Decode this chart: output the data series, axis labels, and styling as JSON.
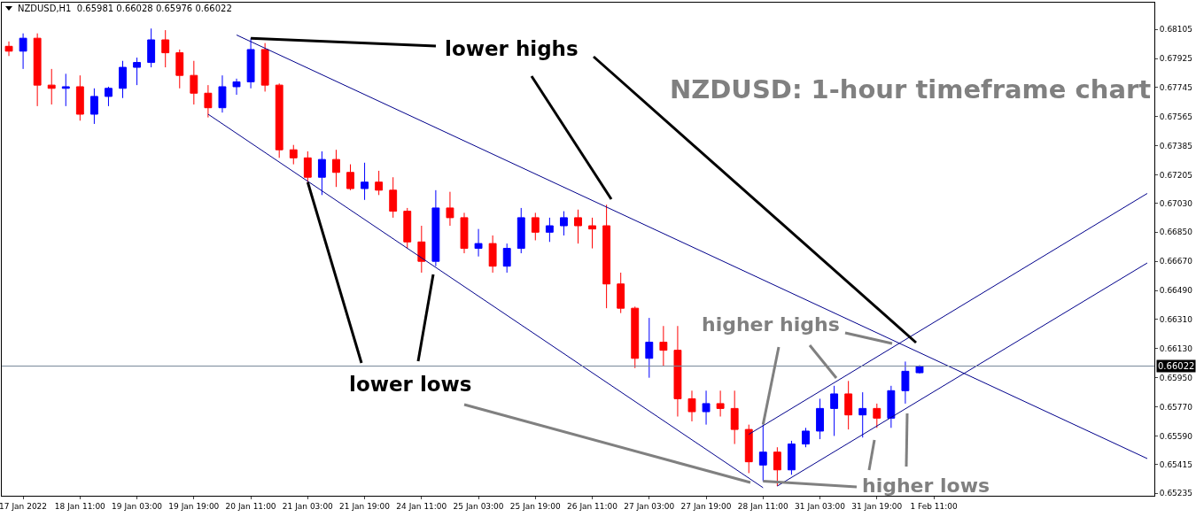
{
  "chart_data": {
    "type": "candlestick",
    "title": "NZDUSD,H1  0.65981 0.66028 0.65976 0.66022",
    "categories": [
      null,
      "17 Jan 2022",
      null,
      null,
      null,
      "18 Jan 11:00",
      null,
      null,
      null,
      "19 Jan 03:00",
      null,
      null,
      null,
      "19 Jan 19:00",
      null,
      null,
      null,
      "20 Jan 11:00",
      null,
      null,
      null,
      "21 Jan 03:00",
      null,
      null,
      null,
      "21 Jan 19:00",
      null,
      null,
      null,
      "24 Jan 11:00",
      null,
      null,
      null,
      "25 Jan 03:00",
      null,
      null,
      null,
      "25 Jan 19:00",
      null,
      null,
      null,
      "26 Jan 11:00",
      null,
      null,
      null,
      "27 Jan 03:00",
      null,
      null,
      null,
      "27 Jan 19:00",
      null,
      null,
      null,
      "28 Jan 11:00",
      null,
      null,
      null,
      "31 Jan 03:00",
      null,
      null,
      null,
      "31 Jan 19:00",
      null,
      null,
      null,
      "1 Feb 11:00",
      null,
      null,
      null,
      null,
      null,
      null,
      null,
      null,
      null,
      null,
      null,
      null,
      null,
      null,
      null
    ],
    "ohlc": [
      [
        0.68,
        0.6803,
        0.6794,
        0.6797
      ],
      [
        0.6797,
        0.6808,
        0.6786,
        0.6805
      ],
      [
        0.6805,
        0.6808,
        0.6763,
        0.6776
      ],
      [
        0.6776,
        0.6786,
        0.6764,
        0.6774
      ],
      [
        0.6774,
        0.6783,
        0.6763,
        0.6775
      ],
      [
        0.6775,
        0.6782,
        0.6754,
        0.6758
      ],
      [
        0.6758,
        0.6774,
        0.6752,
        0.6769
      ],
      [
        0.6769,
        0.6775,
        0.6763,
        0.6774
      ],
      [
        0.6774,
        0.6791,
        0.6768,
        0.6787
      ],
      [
        0.6787,
        0.6793,
        0.6776,
        0.679
      ],
      [
        0.679,
        0.6811,
        0.6787,
        0.6804
      ],
      [
        0.6804,
        0.681,
        0.6787,
        0.6796
      ],
      [
        0.6796,
        0.6798,
        0.6774,
        0.6782
      ],
      [
        0.6782,
        0.6791,
        0.6764,
        0.6771
      ],
      [
        0.6771,
        0.6776,
        0.6756,
        0.6762
      ],
      [
        0.6762,
        0.6782,
        0.6759,
        0.6775
      ],
      [
        0.6775,
        0.678,
        0.677,
        0.6778
      ],
      [
        0.6778,
        0.6805,
        0.6774,
        0.6798
      ],
      [
        0.6798,
        0.6802,
        0.6772,
        0.6776
      ],
      [
        0.6776,
        0.6777,
        0.6731,
        0.6736
      ],
      [
        0.6736,
        0.6739,
        0.6727,
        0.6731
      ],
      [
        0.6731,
        0.6735,
        0.6716,
        0.6719
      ],
      [
        0.6719,
        0.6735,
        0.6708,
        0.673
      ],
      [
        0.673,
        0.6736,
        0.6713,
        0.6722
      ],
      [
        0.6722,
        0.6727,
        0.6711,
        0.6712
      ],
      [
        0.6712,
        0.6728,
        0.6705,
        0.6716
      ],
      [
        0.6716,
        0.6723,
        0.6708,
        0.6711
      ],
      [
        0.6711,
        0.6719,
        0.6694,
        0.6698
      ],
      [
        0.6698,
        0.67,
        0.6675,
        0.6679
      ],
      [
        0.6679,
        0.6689,
        0.666,
        0.6667
      ],
      [
        0.6667,
        0.6711,
        0.6664,
        0.67
      ],
      [
        0.67,
        0.671,
        0.6689,
        0.6694
      ],
      [
        0.6694,
        0.6697,
        0.6672,
        0.6675
      ],
      [
        0.6675,
        0.6687,
        0.667,
        0.6678
      ],
      [
        0.6678,
        0.6683,
        0.666,
        0.6664
      ],
      [
        0.6664,
        0.6678,
        0.666,
        0.6675
      ],
      [
        0.6675,
        0.67,
        0.6672,
        0.6694
      ],
      [
        0.6694,
        0.6697,
        0.668,
        0.6685
      ],
      [
        0.6685,
        0.6694,
        0.6679,
        0.6689
      ],
      [
        0.6689,
        0.6698,
        0.6683,
        0.6694
      ],
      [
        0.6694,
        0.6699,
        0.6678,
        0.6689
      ],
      [
        0.6689,
        0.6694,
        0.6675,
        0.6687
      ],
      [
        0.6689,
        0.6702,
        0.6638,
        0.6653
      ],
      [
        0.6653,
        0.666,
        0.6635,
        0.6638
      ],
      [
        0.6638,
        0.6639,
        0.6601,
        0.6607
      ],
      [
        0.6607,
        0.6632,
        0.6595,
        0.6617
      ],
      [
        0.6617,
        0.6627,
        0.6602,
        0.6612
      ],
      [
        0.6612,
        0.6627,
        0.6571,
        0.6582
      ],
      [
        0.6582,
        0.6587,
        0.6568,
        0.6574
      ],
      [
        0.6574,
        0.6587,
        0.6566,
        0.6579
      ],
      [
        0.6579,
        0.6587,
        0.6571,
        0.6576
      ],
      [
        0.6576,
        0.6587,
        0.6554,
        0.6563
      ],
      [
        0.6563,
        0.6566,
        0.6536,
        0.6543
      ],
      [
        0.6541,
        0.6566,
        0.6531,
        0.6549
      ],
      [
        0.6549,
        0.6552,
        0.6528,
        0.6538
      ],
      [
        0.6538,
        0.6556,
        0.6535,
        0.6554
      ],
      [
        0.6554,
        0.6564,
        0.6552,
        0.6562
      ],
      [
        0.6562,
        0.6582,
        0.6557,
        0.6576
      ],
      [
        0.6576,
        0.659,
        0.6559,
        0.6585
      ],
      [
        0.6585,
        0.6593,
        0.6563,
        0.6572
      ],
      [
        0.6572,
        0.6586,
        0.6558,
        0.6576
      ],
      [
        0.6576,
        0.6579,
        0.6564,
        0.657
      ],
      [
        0.657,
        0.659,
        0.6564,
        0.6587
      ],
      [
        0.6587,
        0.6605,
        0.6579,
        0.6599
      ],
      [
        0.65981,
        0.66028,
        0.65976,
        0.66022
      ],
      null,
      null,
      null,
      null,
      null,
      null,
      null,
      null,
      null,
      null,
      null,
      null,
      null,
      null,
      null,
      null
    ],
    "series": [
      {
        "type": "line",
        "color": "#00008b",
        "values": [
          null,
          null,
          null,
          null,
          null,
          null,
          null,
          null,
          null,
          null,
          null,
          null,
          null,
          null,
          null,
          null,
          0.6807,
          null,
          null,
          null,
          null,
          null,
          null,
          null,
          null,
          null,
          null,
          null,
          null,
          null,
          null,
          null,
          null,
          null,
          null,
          null,
          null,
          null,
          null,
          null,
          null,
          null,
          null,
          null,
          null,
          null,
          null,
          null,
          null,
          null,
          null,
          null,
          null,
          null,
          null,
          null,
          null,
          null,
          null,
          null,
          null,
          null,
          null,
          null,
          null,
          null,
          null,
          null,
          null,
          null,
          null,
          null,
          null,
          null,
          null,
          null,
          null,
          null,
          null,
          null,
          0.6545
        ]
      },
      {
        "type": "line",
        "color": "#00008b",
        "values": [
          null,
          null,
          null,
          null,
          null,
          null,
          null,
          null,
          null,
          null,
          null,
          null,
          null,
          null,
          0.6758,
          null,
          null,
          null,
          null,
          null,
          null,
          null,
          null,
          null,
          null,
          null,
          null,
          null,
          null,
          null,
          null,
          null,
          null,
          null,
          null,
          null,
          null,
          null,
          null,
          null,
          null,
          null,
          null,
          null,
          null,
          null,
          null,
          null,
          null,
          null,
          null,
          null,
          null,
          0.6527,
          null,
          null,
          null,
          null,
          null,
          null,
          null,
          null,
          null,
          null,
          null,
          null,
          null,
          null,
          null,
          null,
          null,
          null,
          null,
          null,
          null,
          null,
          null,
          null,
          null,
          null,
          null
        ]
      },
      {
        "type": "line",
        "color": "#00008b",
        "values": [
          null,
          null,
          null,
          null,
          null,
          null,
          null,
          null,
          null,
          null,
          null,
          null,
          null,
          null,
          null,
          null,
          null,
          null,
          null,
          null,
          null,
          null,
          null,
          null,
          null,
          null,
          null,
          null,
          null,
          null,
          null,
          null,
          null,
          null,
          null,
          null,
          null,
          null,
          null,
          null,
          null,
          null,
          null,
          null,
          null,
          null,
          null,
          null,
          null,
          null,
          null,
          null,
          0.656,
          null,
          null,
          null,
          null,
          null,
          null,
          null,
          null,
          null,
          null,
          null,
          null,
          null,
          null,
          null,
          null,
          null,
          null,
          null,
          null,
          null,
          null,
          null,
          null,
          null,
          null,
          null,
          0.6709
        ]
      },
      {
        "type": "line",
        "color": "#00008b",
        "values": [
          null,
          null,
          null,
          null,
          null,
          null,
          null,
          null,
          null,
          null,
          null,
          null,
          null,
          null,
          null,
          null,
          null,
          null,
          null,
          null,
          null,
          null,
          null,
          null,
          null,
          null,
          null,
          null,
          null,
          null,
          null,
          null,
          null,
          null,
          null,
          null,
          null,
          null,
          null,
          null,
          null,
          null,
          null,
          null,
          null,
          null,
          null,
          null,
          null,
          null,
          null,
          null,
          null,
          null,
          0.6528,
          null,
          null,
          null,
          null,
          null,
          null,
          null,
          null,
          null,
          null,
          null,
          null,
          null,
          null,
          null,
          null,
          null,
          null,
          null,
          null,
          null,
          null,
          null,
          null,
          null,
          0.6666
        ]
      }
    ],
    "ylim": [
      0.6522,
      0.6827
    ],
    "yticks": [
      0.65235,
      0.65415,
      {
        "value": 0.6559,
        "label": "0.65590"
      },
      {
        "value": 0.6577,
        "label": "0.65770"
      },
      {
        "value": 0.6595,
        "label": "0.65950"
      },
      {
        "value": 0.6613,
        "label": "0.66130"
      },
      {
        "value": 0.6631,
        "label": "0.66310"
      },
      {
        "value": 0.6649,
        "label": "0.66490"
      },
      {
        "value": 0.6667,
        "label": "0.66670"
      },
      {
        "value": 0.6685,
        "label": "0.66850"
      },
      {
        "value": 0.6703,
        "label": "0.67030"
      },
      0.67205,
      0.67385,
      0.67565,
      0.67745,
      0.67925,
      0.68105
    ],
    "ref_lines": [
      {
        "axis": "y",
        "value": 0.66022,
        "label": "0.66022",
        "color": "#778899"
      }
    ],
    "annotations": [
      {
        "text": "lower highs",
        "x": "20 Jan 11:00",
        "y": 0.6805
      },
      {
        "text": "lower lows",
        "x": "21 Jan 03:00",
        "y": 0.6716
      },
      {
        "text": "higher highs",
        "x": "28 Jan 11:00",
        "y": 0.6566
      },
      {
        "text": "higher lows",
        "x": "28 Jan 11:00",
        "y": 0.6531
      },
      "NZDUSD: 1-hour timeframe chart"
    ]
  }
}
